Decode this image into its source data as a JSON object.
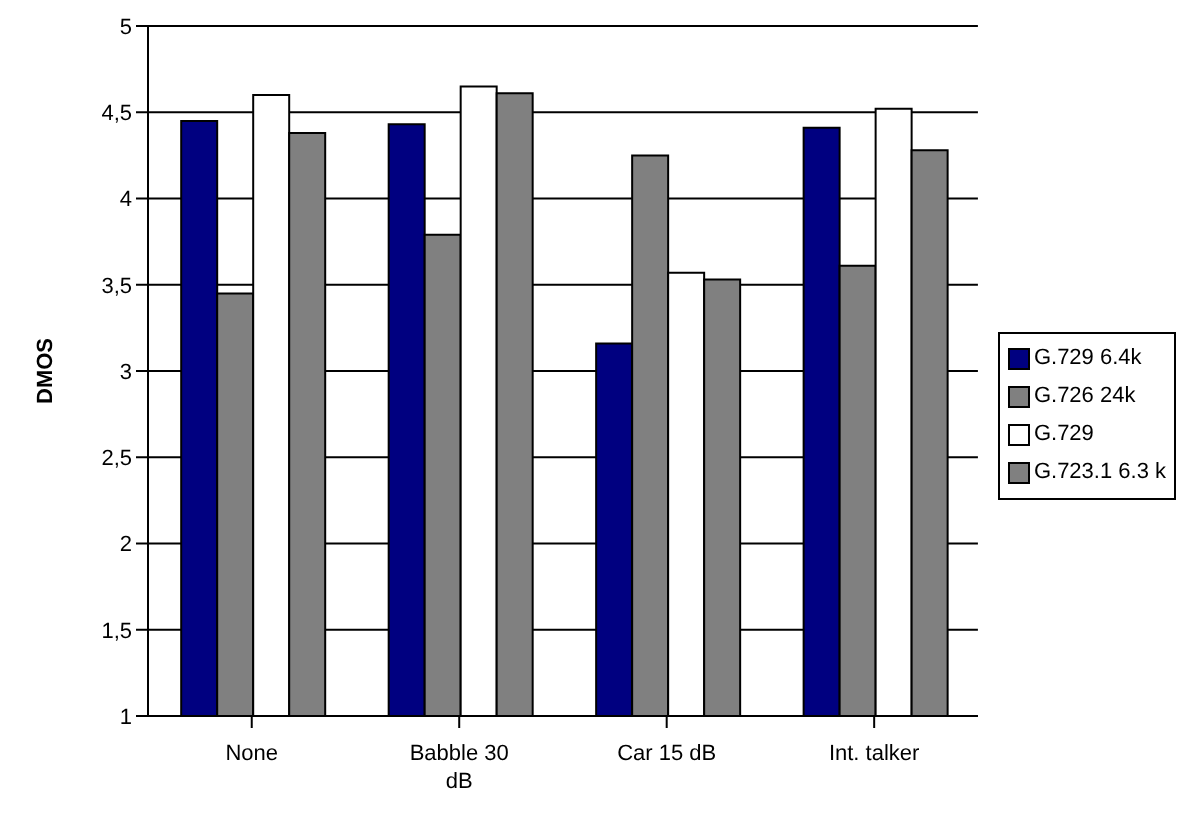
{
  "chart_data": {
    "type": "bar",
    "ylabel": "DMOS",
    "categories": [
      "None",
      "Babble 30 dB",
      "Car 15 dB",
      "Int. talker"
    ],
    "series": [
      {
        "name": "G.729 6.4k",
        "color": "#000080",
        "values": [
          4.45,
          4.43,
          3.16,
          4.41
        ]
      },
      {
        "name": "G.726 24k",
        "color": "#808080",
        "values": [
          3.45,
          3.79,
          4.25,
          3.61
        ]
      },
      {
        "name": "G.729",
        "color": "#ffffff",
        "values": [
          4.6,
          4.65,
          3.57,
          4.52
        ]
      },
      {
        "name": "G.723.1 6.3 k",
        "color": "#808080",
        "values": [
          4.38,
          4.61,
          3.53,
          4.28
        ]
      }
    ],
    "ylim": [
      1,
      5
    ],
    "yticks": [
      1,
      {
        "value": 1.5,
        "label": "1,5"
      },
      2,
      {
        "value": 2.5,
        "label": "2,5"
      },
      3,
      {
        "value": 3.5,
        "label": "3,5"
      },
      4,
      {
        "value": 4.5,
        "label": "4,5"
      },
      5
    ],
    "grid": "y",
    "legend": "right"
  }
}
